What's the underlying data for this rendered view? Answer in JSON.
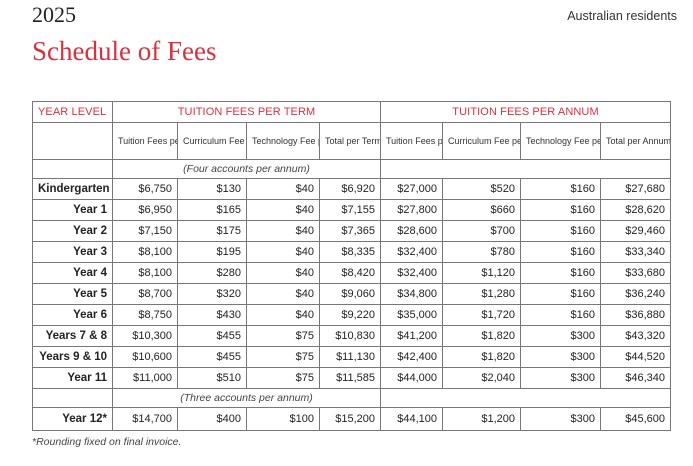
{
  "header": {
    "year": "2025",
    "subtitle": "Australian residents",
    "title": "Schedule of Fees"
  },
  "table": {
    "group_headers": {
      "year_level": "YEAR LEVEL",
      "per_term": "TUITION FEES PER TERM",
      "per_annum": "TUITION FEES PER ANNUM"
    },
    "sub_headers": [
      "Tuition Fees per Term",
      "Curriculum Fee per Term",
      "Technology Fee per Term",
      "Total per Term",
      "Tuition Fees per Annum",
      "Curriculum Fee per Annum",
      "Technology Fee per Annum",
      "Total per Annum"
    ],
    "note_four": "(Four accounts per annum)",
    "note_three": "(Three accounts per annum)",
    "rows": [
      {
        "level": "Kindergarten",
        "cells": [
          "$6,750",
          "$130",
          "$40",
          "$6,920",
          "$27,000",
          "$520",
          "$160",
          "$27,680"
        ]
      },
      {
        "level": "Year 1",
        "cells": [
          "$6,950",
          "$165",
          "$40",
          "$7,155",
          "$27,800",
          "$660",
          "$160",
          "$28,620"
        ]
      },
      {
        "level": "Year 2",
        "cells": [
          "$7,150",
          "$175",
          "$40",
          "$7,365",
          "$28,600",
          "$700",
          "$160",
          "$29,460"
        ]
      },
      {
        "level": "Year 3",
        "cells": [
          "$8,100",
          "$195",
          "$40",
          "$8,335",
          "$32,400",
          "$780",
          "$160",
          "$33,340"
        ]
      },
      {
        "level": "Year 4",
        "cells": [
          "$8,100",
          "$280",
          "$40",
          "$8,420",
          "$32,400",
          "$1,120",
          "$160",
          "$33,680"
        ]
      },
      {
        "level": "Year 5",
        "cells": [
          "$8,700",
          "$320",
          "$40",
          "$9,060",
          "$34,800",
          "$1,280",
          "$160",
          "$36,240"
        ]
      },
      {
        "level": "Year 6",
        "cells": [
          "$8,750",
          "$430",
          "$40",
          "$9,220",
          "$35,000",
          "$1,720",
          "$160",
          "$36,880"
        ]
      },
      {
        "level": "Years 7 & 8",
        "cells": [
          "$10,300",
          "$455",
          "$75",
          "$10,830",
          "$41,200",
          "$1,820",
          "$300",
          "$43,320"
        ]
      },
      {
        "level": "Years 9 & 10",
        "cells": [
          "$10,600",
          "$455",
          "$75",
          "$11,130",
          "$42,400",
          "$1,820",
          "$300",
          "$44,520"
        ]
      },
      {
        "level": "Year 11",
        "cells": [
          "$11,000",
          "$510",
          "$75",
          "$11,585",
          "$44,000",
          "$2,040",
          "$300",
          "$46,340"
        ]
      }
    ],
    "final_row": {
      "level": "Year 12*",
      "cells": [
        "$14,700",
        "$400",
        "$100",
        "$15,200",
        "$44,100",
        "$1,200",
        "$300",
        "$45,600"
      ]
    }
  },
  "footnote": "*Rounding fixed on final invoice."
}
